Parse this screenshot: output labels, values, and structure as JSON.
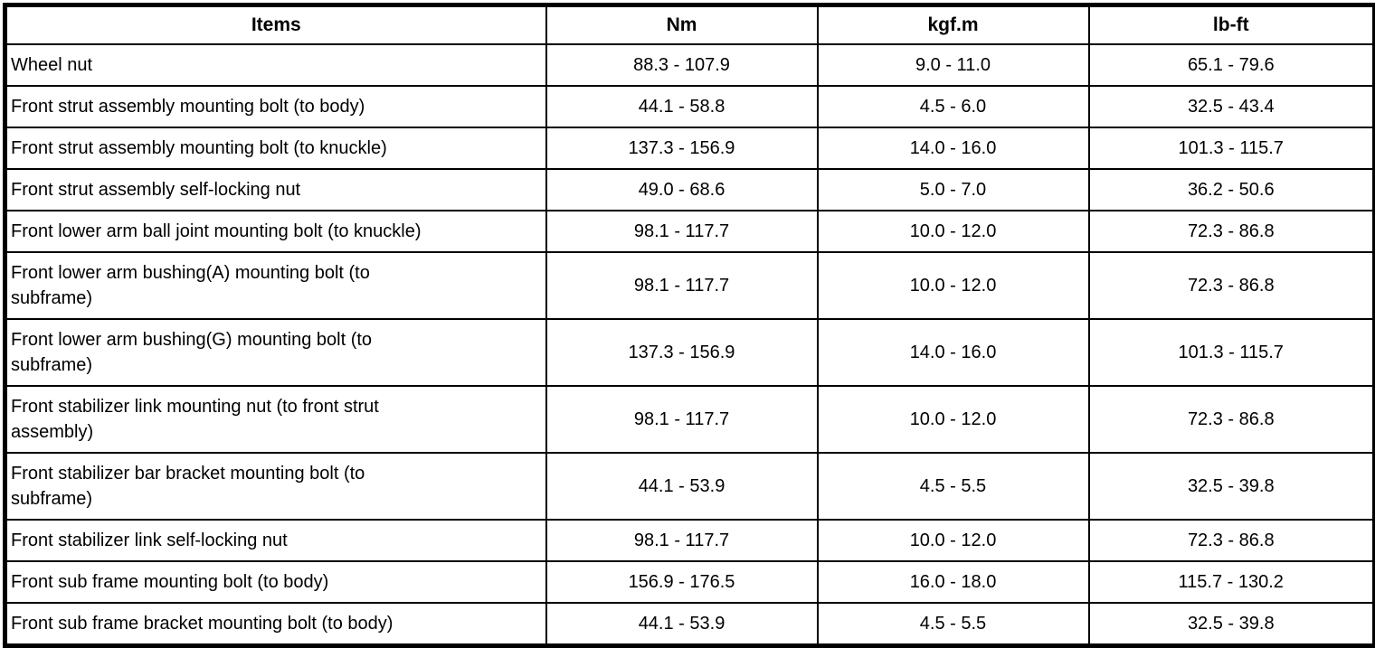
{
  "colors": {
    "border": "#000000",
    "background": "#ffffff",
    "text": "#000000"
  },
  "table": {
    "columns": [
      "Items",
      "Nm",
      "kgf.m",
      "lb-ft"
    ],
    "rows": [
      {
        "item": "Wheel nut",
        "nm": "88.3 - 107.9",
        "kgfm": "9.0 - 11.0",
        "lbft": "65.1 - 79.6"
      },
      {
        "item": "Front strut assembly mounting bolt (to body)",
        "nm": "44.1 - 58.8",
        "kgfm": "4.5 - 6.0",
        "lbft": "32.5 - 43.4"
      },
      {
        "item": "Front strut assembly mounting bolt (to knuckle)",
        "nm": "137.3 - 156.9",
        "kgfm": "14.0 - 16.0",
        "lbft": "101.3 - 115.7"
      },
      {
        "item": "Front strut assembly self-locking nut",
        "nm": "49.0 - 68.6",
        "kgfm": "5.0 - 7.0",
        "lbft": "36.2 - 50.6"
      },
      {
        "item": "Front lower arm ball joint mounting bolt (to knuckle)",
        "nm": "98.1 - 117.7",
        "kgfm": "10.0 - 12.0",
        "lbft": "72.3 - 86.8"
      },
      {
        "item": "Front lower arm bushing(A) mounting bolt (to\nsubframe)",
        "nm": "98.1 - 117.7",
        "kgfm": "10.0 - 12.0",
        "lbft": "72.3 - 86.8"
      },
      {
        "item": "Front lower arm bushing(G) mounting bolt (to\nsubframe)",
        "nm": "137.3 - 156.9",
        "kgfm": "14.0 - 16.0",
        "lbft": "101.3 - 115.7"
      },
      {
        "item": "Front stabilizer link mounting nut (to front strut\nassembly)",
        "nm": "98.1 - 117.7",
        "kgfm": "10.0 - 12.0",
        "lbft": "72.3 - 86.8"
      },
      {
        "item": "Front stabilizer bar bracket mounting bolt (to\nsubframe)",
        "nm": "44.1 - 53.9",
        "kgfm": "4.5 - 5.5",
        "lbft": "32.5 - 39.8"
      },
      {
        "item": "Front stabilizer link self-locking nut",
        "nm": "98.1 - 117.7",
        "kgfm": "10.0 - 12.0",
        "lbft": "72.3 - 86.8"
      },
      {
        "item": "Front sub frame mounting bolt (to body)",
        "nm": "156.9 - 176.5",
        "kgfm": "16.0 - 18.0",
        "lbft": "115.7 - 130.2"
      },
      {
        "item": "Front sub frame bracket mounting bolt (to body)",
        "nm": "44.1 - 53.9",
        "kgfm": "4.5 - 5.5",
        "lbft": "32.5 - 39.8"
      }
    ]
  }
}
